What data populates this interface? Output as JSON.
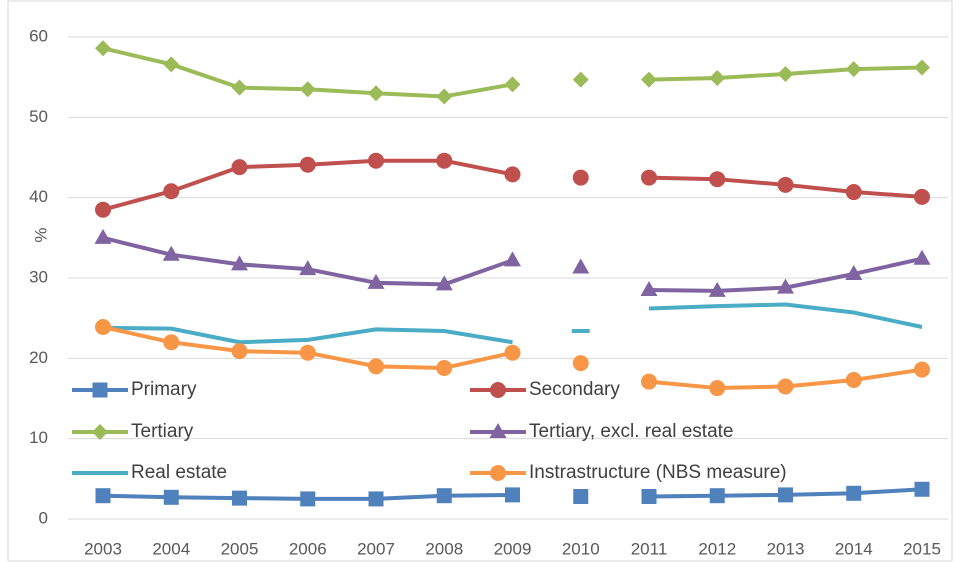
{
  "chart_data": {
    "type": "line",
    "y_label": "%",
    "categories": [
      "2003",
      "2004",
      "2005",
      "2006",
      "2007",
      "2008",
      "2009",
      "2010",
      "2011",
      "2012",
      "2013",
      "2014",
      "2015"
    ],
    "line_breaks_before": [
      "2010",
      "2011"
    ],
    "ylim": [
      0,
      60
    ],
    "yticks": [
      0,
      10,
      20,
      30,
      40,
      50,
      60
    ],
    "grid": true,
    "legend": "inside",
    "series": [
      {
        "name": "Primary",
        "color": "#4f81bd",
        "marker": "square",
        "values": [
          2.9,
          2.7,
          2.6,
          2.5,
          2.5,
          2.9,
          3.0,
          2.8,
          2.8,
          2.9,
          3.0,
          3.2,
          3.7
        ]
      },
      {
        "name": "Secondary",
        "color": "#c0504d",
        "marker": "circle",
        "values": [
          38.5,
          40.8,
          43.8,
          44.1,
          44.6,
          44.6,
          42.9,
          42.5,
          42.5,
          42.3,
          41.6,
          40.7,
          40.1
        ]
      },
      {
        "name": "Tertiary",
        "color": "#9bbb59",
        "marker": "diamond",
        "values": [
          58.6,
          56.6,
          53.7,
          53.5,
          53.0,
          52.6,
          54.1,
          54.7,
          54.7,
          54.9,
          55.4,
          56.0,
          56.2
        ]
      },
      {
        "name": "Tertiary, excl. real estate",
        "color": "#8064a2",
        "marker": "triangle",
        "values": [
          35.0,
          32.9,
          31.7,
          31.1,
          29.4,
          29.2,
          32.2,
          31.3,
          28.5,
          28.4,
          28.8,
          30.5,
          32.4
        ]
      },
      {
        "name": "Real estate",
        "color": "#4bacc6",
        "marker": "none",
        "values": [
          23.8,
          23.7,
          22.0,
          22.3,
          23.6,
          23.4,
          22.0,
          23.4,
          26.2,
          26.5,
          26.7,
          25.7,
          23.9
        ]
      },
      {
        "name": "Instrastructure (NBS measure)",
        "color": "#f79646",
        "marker": "circle",
        "values": [
          23.9,
          22.0,
          20.9,
          20.7,
          19.0,
          18.8,
          20.7,
          19.4,
          17.1,
          16.3,
          16.5,
          17.3,
          18.6
        ]
      }
    ]
  }
}
